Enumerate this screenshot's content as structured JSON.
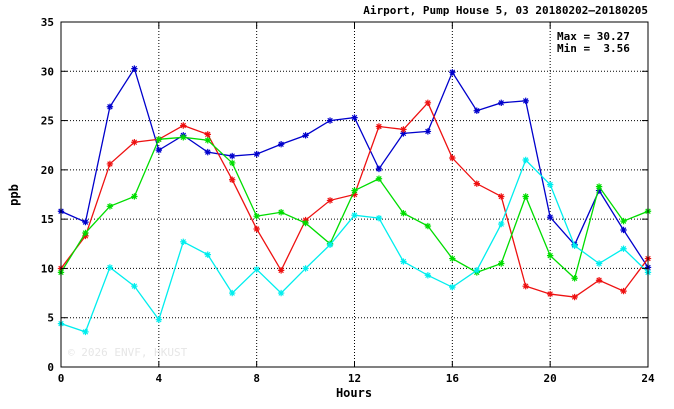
{
  "chart_data": {
    "type": "line",
    "title": "Airport, Pump House 5, 03 20180202–20180205",
    "xlabel": "Hours",
    "ylabel": "ppb",
    "xlim": [
      0,
      24
    ],
    "ylim": [
      0,
      35
    ],
    "x_ticks": [
      0,
      4,
      8,
      12,
      16,
      20,
      24
    ],
    "y_ticks": [
      0,
      5,
      10,
      15,
      20,
      25,
      30,
      35
    ],
    "grid": true,
    "stats": {
      "max_text": "Max = 30.27",
      "min_text": "Min =  3.56"
    },
    "watermark": "© 2026 ENVF, HKUST",
    "x": [
      0,
      1,
      2,
      3,
      4,
      5,
      6,
      7,
      8,
      9,
      10,
      11,
      12,
      13,
      14,
      15,
      16,
      17,
      18,
      19,
      20,
      21,
      22,
      23,
      24
    ],
    "series": [
      {
        "color": "#0000cc",
        "values": [
          15.8,
          14.7,
          26.4,
          30.27,
          22.0,
          23.5,
          21.8,
          21.4,
          21.6,
          22.6,
          23.5,
          25.0,
          25.3,
          20.1,
          23.7,
          23.9,
          29.9,
          26.0,
          26.8,
          27.0,
          15.2,
          12.4,
          17.9,
          13.9,
          10.1
        ]
      },
      {
        "color": "#ee1111",
        "values": [
          10.0,
          13.3,
          20.6,
          22.8,
          23.1,
          24.5,
          23.6,
          19.0,
          14.0,
          9.8,
          14.9,
          16.9,
          17.5,
          24.4,
          24.1,
          26.8,
          21.2,
          18.6,
          17.3,
          8.2,
          7.4,
          7.1,
          8.8,
          7.7,
          11.0
        ]
      },
      {
        "color": "#00dd00",
        "values": [
          9.6,
          13.6,
          16.3,
          17.3,
          23.1,
          23.3,
          23.0,
          20.7,
          15.3,
          15.7,
          14.6,
          12.5,
          17.9,
          19.1,
          15.6,
          14.3,
          11.0,
          9.6,
          10.5,
          17.3,
          11.3,
          9.0,
          18.3,
          14.8,
          15.8
        ]
      },
      {
        "color": "#00eeee",
        "values": [
          4.4,
          3.56,
          10.1,
          8.2,
          4.8,
          12.7,
          11.4,
          7.5,
          9.9,
          7.5,
          10.0,
          12.4,
          15.4,
          15.1,
          10.7,
          9.3,
          8.1,
          9.8,
          14.5,
          21.0,
          18.5,
          12.3,
          10.5,
          12.0,
          9.6
        ]
      }
    ]
  }
}
